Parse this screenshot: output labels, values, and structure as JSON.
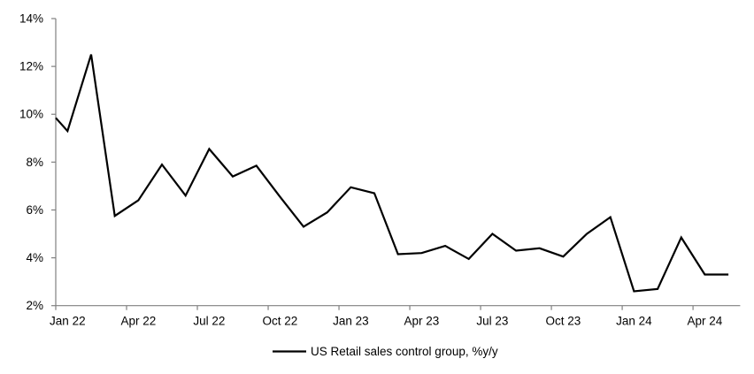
{
  "chart_data": {
    "type": "line",
    "title": "",
    "legend_label": "US Retail sales control group, %y/y",
    "x": [
      "Jan 22",
      "Feb 22",
      "Mar 22",
      "Apr 22",
      "May 22",
      "Jun 22",
      "Jul 22",
      "Aug 22",
      "Sep 22",
      "Oct 22",
      "Nov 22",
      "Dec 22",
      "Jan 23",
      "Feb 23",
      "Mar 23",
      "Apr 23",
      "May 23",
      "Jun 23",
      "Jul 23",
      "Aug 23",
      "Sep 23",
      "Oct 23",
      "Nov 23",
      "Dec 23",
      "Jan 24",
      "Feb 24",
      "Mar 24",
      "Apr 24",
      "May 24"
    ],
    "series": [
      {
        "name": "US Retail sales control group, %y/y",
        "values": [
          9.3,
          12.5,
          5.75,
          6.4,
          7.9,
          6.6,
          8.55,
          7.4,
          7.85,
          6.55,
          5.3,
          5.9,
          6.95,
          6.7,
          4.15,
          4.2,
          4.5,
          3.95,
          5.0,
          4.3,
          4.4,
          4.05,
          5.0,
          5.7,
          2.6,
          2.7,
          4.85,
          3.3,
          3.3
        ]
      }
    ],
    "left_edge_clip_value": 9.85,
    "xlabel": "",
    "ylabel": "",
    "ylim": [
      2,
      14
    ],
    "y_tick_labels": [
      "14%",
      "12%",
      "10%",
      "8%",
      "6%",
      "4%",
      "2%"
    ],
    "y_tick_values": [
      14,
      12,
      10,
      8,
      6,
      4,
      2
    ],
    "x_tick_labels": [
      "Jan 22",
      "Apr 22",
      "Jul 22",
      "Oct 22",
      "Jan 23",
      "Apr 23",
      "Jul 23",
      "Oct 23",
      "Jan 24",
      "Apr 24"
    ],
    "x_label_every_n": 3,
    "grid": "off",
    "legend_position": "bottom-center",
    "line_color": "#000000",
    "axis_color": "#808080",
    "text_color": "#000000",
    "background_color": "#ffffff"
  }
}
